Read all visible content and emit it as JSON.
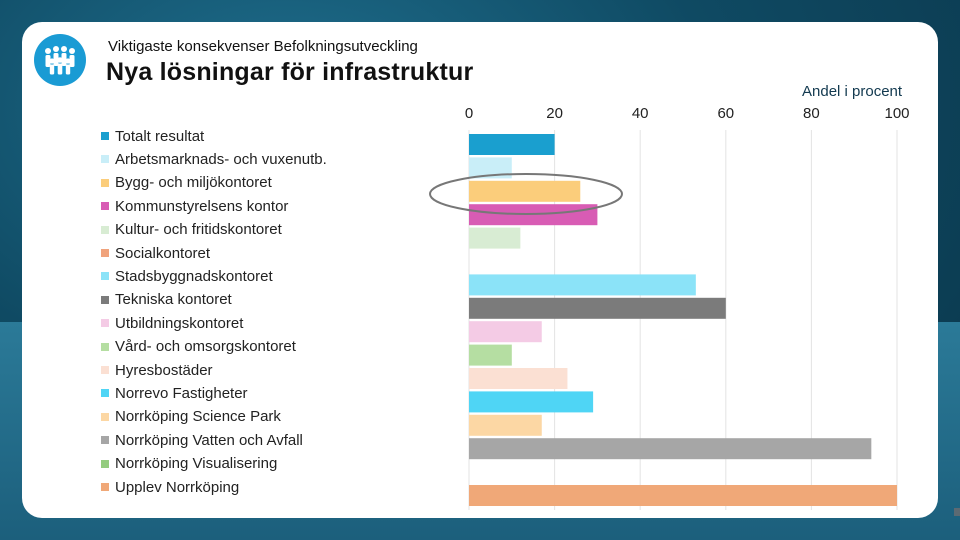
{
  "header": {
    "suptitle": "Viktigaste konsekvenser Befolkningsutveckling",
    "title": "Nya lösningar för infrastruktur",
    "logo_icon": "people-group-icon"
  },
  "chart_data": {
    "type": "bar",
    "orientation": "horizontal",
    "title": "Nya lösningar för infrastruktur",
    "subtitle": "Viktigaste konsekvenser Befolkningsutveckling",
    "xlabel": "Andel i procent",
    "ylabel": "",
    "xlim": [
      0,
      100
    ],
    "xticks": [
      "0",
      "20",
      "40",
      "60",
      "80",
      "100"
    ],
    "grid": true,
    "legend": "left",
    "categories": [
      "Totalt resultat",
      "Arbetsmarknads- och vuxenutb.",
      "Bygg- och miljökontoret",
      "Kommunstyrelsens kontor",
      "Kultur- och fritidskontoret",
      "Socialkontoret",
      "Stadsbyggnadskontoret",
      "Tekniska kontoret",
      "Utbildningskontoret",
      "Vård- och omsorgskontoret",
      "Hyresbostäder",
      "Norrevo Fastigheter",
      "Norrköping Science Park",
      "Norrköping Vatten och Avfall",
      "Norrköping Visualisering",
      "Upplev Norrköping"
    ],
    "values": [
      20,
      10,
      26,
      30,
      12,
      0,
      53,
      60,
      17,
      10,
      23,
      29,
      17,
      94,
      0,
      100
    ],
    "colors": [
      "#1a9fcf",
      "#c9eef8",
      "#fbcd7b",
      "#d85cb4",
      "#d8ecd3",
      "#f0a37c",
      "#8be3f8",
      "#7b7b7b",
      "#f4cbe5",
      "#b5dea2",
      "#fbe0d3",
      "#4fd5f5",
      "#fcd7a4",
      "#a6a6a6",
      "#94cc7f",
      "#f0a878"
    ],
    "annotation": "ellipse highlighting Bygg- och miljökontoret"
  }
}
